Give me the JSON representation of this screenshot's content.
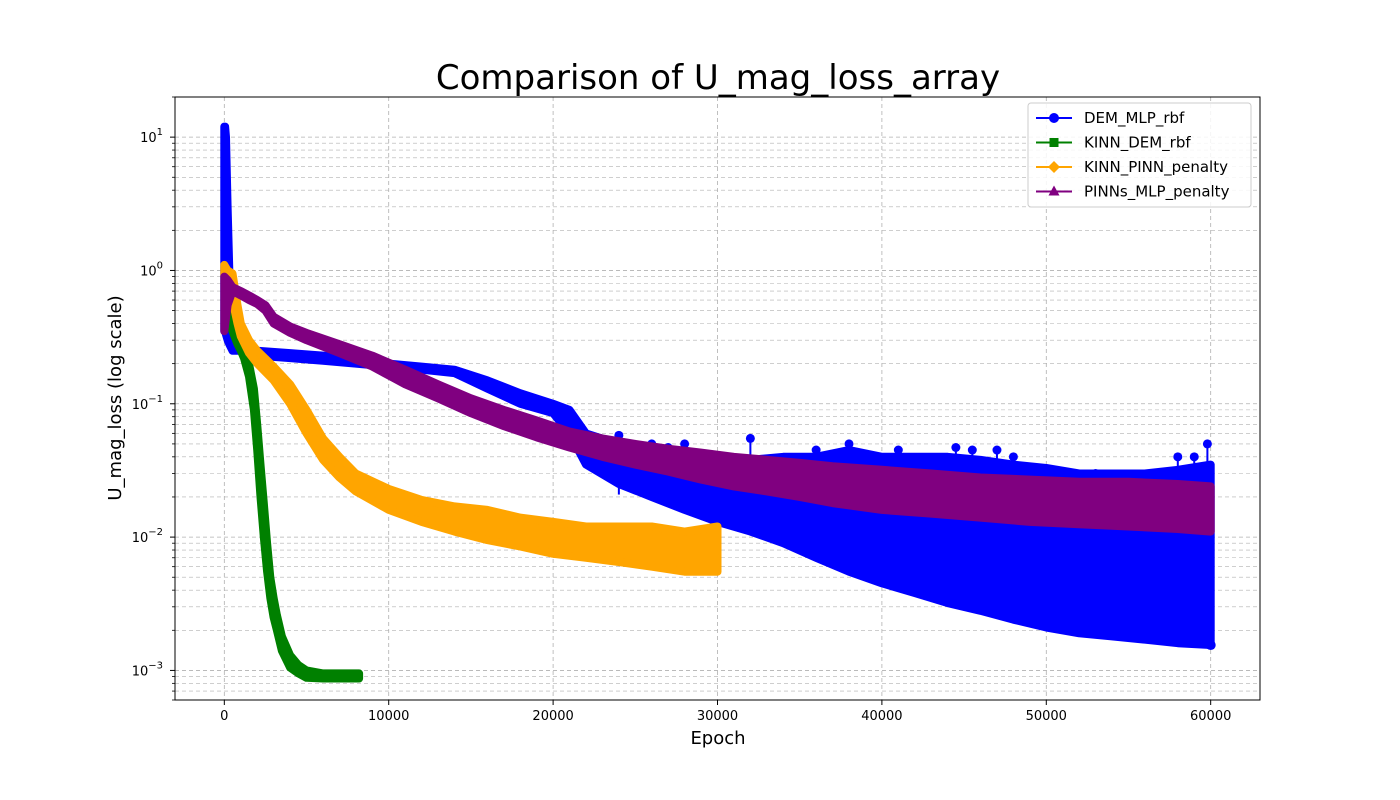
{
  "chart_data": {
    "type": "line",
    "title": "Comparison of U_mag_loss_array",
    "xlabel": "Epoch",
    "ylabel": "U_mag_loss (log scale)",
    "yscale": "log",
    "xlim": [
      -3000,
      63000
    ],
    "ylim": [
      0.0006,
      20
    ],
    "xticks": [
      0,
      10000,
      20000,
      30000,
      40000,
      50000,
      60000
    ],
    "xtick_labels": [
      "0",
      "10000",
      "20000",
      "30000",
      "40000",
      "50000",
      "60000"
    ],
    "yticks": [
      0.001,
      0.01,
      0.1,
      1,
      10
    ],
    "ytick_labels": [
      {
        "base": "10",
        "exp": "−3"
      },
      {
        "base": "10",
        "exp": "−2"
      },
      {
        "base": "10",
        "exp": "−1"
      },
      {
        "base": "10",
        "exp": "0"
      },
      {
        "base": "10",
        "exp": "1"
      }
    ],
    "grid": true,
    "legend_position": "top-right",
    "series": [
      {
        "name": "DEM_MLP_rbf",
        "color": "#0000ff",
        "marker": "circle",
        "x": [
          0,
          50,
          100,
          200,
          300,
          500,
          1000,
          2000,
          4000,
          6000,
          8000,
          10000,
          12000,
          14000,
          16000,
          18000,
          20000,
          21000,
          22000,
          24000,
          26000,
          28000,
          30000,
          32000,
          34000,
          36000,
          38000,
          40000,
          42000,
          44000,
          46000,
          48000,
          50000,
          52000,
          54000,
          56000,
          58000,
          60000
        ],
        "upper": [
          12,
          12,
          10,
          3,
          1.0,
          0.3,
          0.27,
          0.25,
          0.24,
          0.23,
          0.22,
          0.2,
          0.19,
          0.18,
          0.15,
          0.12,
          0.1,
          0.09,
          0.06,
          0.05,
          0.045,
          0.04,
          0.04,
          0.038,
          0.04,
          0.04,
          0.045,
          0.04,
          0.04,
          0.04,
          0.038,
          0.035,
          0.033,
          0.03,
          0.03,
          0.03,
          0.032,
          0.035
        ],
        "lower": [
          0.35,
          0.35,
          0.33,
          0.3,
          0.28,
          0.25,
          0.25,
          0.23,
          0.22,
          0.21,
          0.2,
          0.19,
          0.18,
          0.17,
          0.13,
          0.1,
          0.085,
          0.06,
          0.035,
          0.025,
          0.02,
          0.016,
          0.013,
          0.011,
          0.009,
          0.007,
          0.0055,
          0.0045,
          0.0038,
          0.0032,
          0.0028,
          0.0024,
          0.0021,
          0.0019,
          0.0018,
          0.0017,
          0.0016,
          0.00155
        ],
        "spikes": [
          [
            24000,
            0.058
          ],
          [
            26000,
            0.05
          ],
          [
            27000,
            0.047
          ],
          [
            28000,
            0.05
          ],
          [
            32000,
            0.055
          ],
          [
            33000,
            0.03
          ],
          [
            34000,
            0.03
          ],
          [
            36000,
            0.045
          ],
          [
            38000,
            0.05
          ],
          [
            39000,
            0.04
          ],
          [
            41000,
            0.045
          ],
          [
            43000,
            0.03
          ],
          [
            44500,
            0.047
          ],
          [
            45500,
            0.045
          ],
          [
            47000,
            0.045
          ],
          [
            48000,
            0.04
          ],
          [
            51000,
            0.03
          ],
          [
            53000,
            0.03
          ],
          [
            55000,
            0.028
          ],
          [
            57000,
            0.03
          ],
          [
            58000,
            0.04
          ],
          [
            59000,
            0.04
          ],
          [
            59800,
            0.05
          ]
        ],
        "end_value": 0.00155
      },
      {
        "name": "KINN_DEM_rbf",
        "color": "#008000",
        "marker": "square",
        "x": [
          200,
          500,
          800,
          1000,
          1200,
          1500,
          1800,
          2000,
          2200,
          2400,
          2600,
          2800,
          3000,
          3200,
          3500,
          4000,
          4500,
          5000,
          6000,
          7000,
          8200
        ],
        "upper": [
          0.9,
          0.42,
          0.32,
          0.28,
          0.25,
          0.2,
          0.13,
          0.07,
          0.035,
          0.018,
          0.009,
          0.005,
          0.0035,
          0.0026,
          0.0018,
          0.0013,
          0.0011,
          0.001,
          0.00095,
          0.00095,
          0.00095
        ],
        "lower": [
          0.8,
          0.35,
          0.28,
          0.25,
          0.22,
          0.16,
          0.09,
          0.045,
          0.02,
          0.01,
          0.0055,
          0.0035,
          0.0025,
          0.002,
          0.0014,
          0.00105,
          0.00095,
          0.00088,
          0.00087,
          0.00087,
          0.00087
        ]
      },
      {
        "name": "KINN_PINN_penalty",
        "color": "#ffa500",
        "marker": "diamond",
        "x": [
          0,
          200,
          500,
          800,
          1000,
          1500,
          2000,
          3000,
          4000,
          5000,
          6000,
          7000,
          8000,
          10000,
          12000,
          14000,
          16000,
          18000,
          20000,
          22000,
          24000,
          26000,
          28000,
          30000
        ],
        "upper": [
          1.1,
          1.0,
          0.95,
          0.55,
          0.4,
          0.3,
          0.25,
          0.19,
          0.14,
          0.09,
          0.055,
          0.04,
          0.03,
          0.023,
          0.019,
          0.017,
          0.016,
          0.014,
          0.013,
          0.012,
          0.012,
          0.012,
          0.011,
          0.012
        ],
        "lower": [
          0.9,
          0.85,
          0.6,
          0.4,
          0.32,
          0.24,
          0.2,
          0.15,
          0.1,
          0.06,
          0.038,
          0.028,
          0.022,
          0.016,
          0.013,
          0.011,
          0.0095,
          0.0085,
          0.0075,
          0.007,
          0.0065,
          0.006,
          0.0055,
          0.0055
        ]
      },
      {
        "name": "PINNs_MLP_penalty",
        "color": "#800080",
        "marker": "triangle",
        "x": [
          0,
          200,
          500,
          1000,
          1500,
          2000,
          2500,
          3000,
          4000,
          5000,
          7000,
          9000,
          11000,
          13000,
          15000,
          17000,
          19000,
          21000,
          23000,
          25000,
          27000,
          29000,
          31000,
          33000,
          35000,
          37000,
          40000,
          43000,
          46000,
          49000,
          52000,
          55000,
          58000,
          60000
        ],
        "upper": [
          0.9,
          0.85,
          0.75,
          0.7,
          0.65,
          0.6,
          0.55,
          0.45,
          0.38,
          0.34,
          0.28,
          0.23,
          0.18,
          0.14,
          0.11,
          0.09,
          0.075,
          0.062,
          0.055,
          0.05,
          0.046,
          0.043,
          0.04,
          0.038,
          0.036,
          0.034,
          0.032,
          0.03,
          0.028,
          0.027,
          0.026,
          0.026,
          0.025,
          0.024
        ],
        "lower": [
          0.35,
          0.55,
          0.7,
          0.65,
          0.6,
          0.56,
          0.5,
          0.4,
          0.34,
          0.3,
          0.24,
          0.19,
          0.14,
          0.11,
          0.085,
          0.068,
          0.056,
          0.047,
          0.04,
          0.035,
          0.031,
          0.027,
          0.024,
          0.022,
          0.02,
          0.018,
          0.016,
          0.015,
          0.014,
          0.013,
          0.0125,
          0.012,
          0.0115,
          0.011
        ]
      }
    ]
  }
}
